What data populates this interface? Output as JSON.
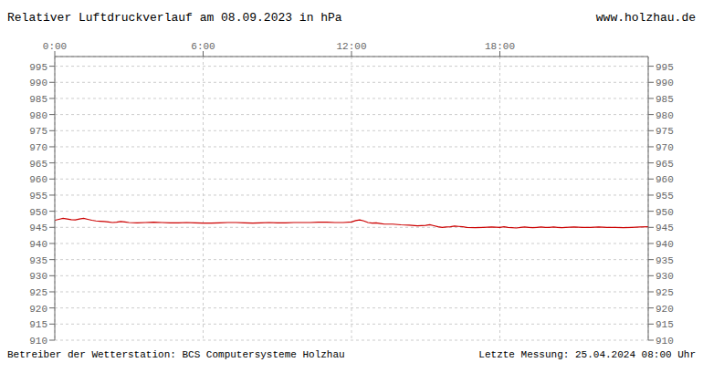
{
  "chart_data": {
    "type": "line",
    "title": "Relativer Luftdruckverlauf am 08.09.2023 in hPa",
    "annotations": [
      "www.holzhau.de",
      "Betreiber der Wetterstation: BCS Computersysteme Holzhau",
      "Letzte Messung: 25.04.2024 08:00 Uhr"
    ],
    "color": "#cc0000",
    "grid": true,
    "xlim": [
      0,
      1440
    ],
    "xticks": [
      {
        "value": 0,
        "label": "0:00"
      },
      {
        "value": 360,
        "label": "6:00"
      },
      {
        "value": 720,
        "label": "12:00"
      },
      {
        "value": 1080,
        "label": "18:00"
      }
    ],
    "ylim": [
      910,
      998
    ],
    "yticks": [
      910,
      915,
      920,
      925,
      930,
      935,
      940,
      945,
      950,
      955,
      960,
      965,
      970,
      975,
      980,
      985,
      990,
      995
    ],
    "y2lim": [
      910,
      998
    ],
    "y2ticks": [
      910,
      915,
      920,
      925,
      930,
      935,
      940,
      945,
      950,
      955,
      960,
      965,
      970,
      975,
      980,
      985,
      990,
      995
    ],
    "x": [
      0,
      10,
      20,
      30,
      40,
      50,
      60,
      70,
      80,
      90,
      100,
      110,
      120,
      130,
      140,
      150,
      160,
      170,
      180,
      200,
      220,
      240,
      260,
      280,
      300,
      320,
      340,
      360,
      380,
      400,
      420,
      440,
      460,
      480,
      500,
      520,
      540,
      560,
      580,
      600,
      620,
      640,
      660,
      680,
      700,
      720,
      730,
      740,
      750,
      760,
      770,
      780,
      790,
      800,
      820,
      840,
      860,
      880,
      900,
      910,
      920,
      930,
      940,
      950,
      960,
      970,
      980,
      990,
      1000,
      1020,
      1040,
      1060,
      1080,
      1090,
      1100,
      1110,
      1120,
      1130,
      1140,
      1150,
      1160,
      1170,
      1180,
      1190,
      1200,
      1210,
      1220,
      1230,
      1240,
      1260,
      1280,
      1300,
      1320,
      1340,
      1360,
      1380,
      1400,
      1420,
      1440
    ],
    "values": [
      947.2,
      947.5,
      947.8,
      947.6,
      947.4,
      947.3,
      947.6,
      947.8,
      947.5,
      947.2,
      947.0,
      946.9,
      946.8,
      946.7,
      946.5,
      946.6,
      946.8,
      946.7,
      946.5,
      946.4,
      946.5,
      946.6,
      946.5,
      946.4,
      946.4,
      946.5,
      946.4,
      946.3,
      946.3,
      946.4,
      946.5,
      946.5,
      946.4,
      946.3,
      946.4,
      946.5,
      946.4,
      946.4,
      946.5,
      946.5,
      946.5,
      946.6,
      946.6,
      946.5,
      946.5,
      946.7,
      947.1,
      947.3,
      947.0,
      946.5,
      946.3,
      946.4,
      946.2,
      946.0,
      946.0,
      945.8,
      945.7,
      945.5,
      945.6,
      945.8,
      945.5,
      945.2,
      945.0,
      945.1,
      945.2,
      945.4,
      945.3,
      945.2,
      945.0,
      944.9,
      945.0,
      945.1,
      945.0,
      945.2,
      945.0,
      944.9,
      944.8,
      945.0,
      945.1,
      945.0,
      944.9,
      945.0,
      945.1,
      945.0,
      945.0,
      945.1,
      945.0,
      944.9,
      945.0,
      945.1,
      945.0,
      945.0,
      945.1,
      945.0,
      945.0,
      944.9,
      945.0,
      945.1,
      945.2
    ]
  }
}
